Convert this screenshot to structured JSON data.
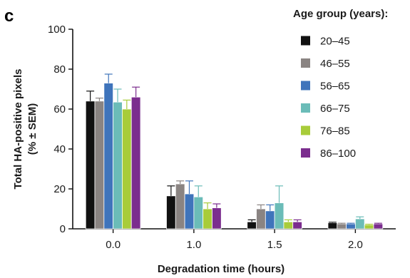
{
  "panel_label": "c",
  "chart_data": {
    "type": "bar",
    "xlabel": "Degradation time (hours)",
    "ylabel_lines": [
      "Total HA-positive pixels",
      "(% ± SEM)"
    ],
    "categories": [
      "0.0",
      "1.0",
      "1.5",
      "2.0"
    ],
    "ylim": [
      0,
      100
    ],
    "yticks": [
      "0",
      "20",
      "40",
      "60",
      "80",
      "100"
    ],
    "legend_title": "Age group (years):",
    "legend_position": "right",
    "grid": false,
    "series": [
      {
        "name": "20–45",
        "color": "#111111",
        "values": [
          64,
          16.5,
          3.5,
          3
        ],
        "err": [
          5,
          5,
          1,
          0.3
        ]
      },
      {
        "name": "46–55",
        "color": "#8a8482",
        "values": [
          64,
          22.5,
          10,
          2.5
        ],
        "err": [
          1.5,
          1.5,
          2,
          0.3
        ]
      },
      {
        "name": "56–65",
        "color": "#3f74bb",
        "values": [
          73,
          17.5,
          9,
          2.5
        ],
        "err": [
          4.5,
          6.5,
          3,
          0.3
        ]
      },
      {
        "name": "66–75",
        "color": "#6bbcb8",
        "values": [
          63.5,
          16,
          13,
          5
        ],
        "err": [
          6.5,
          5.5,
          8.5,
          1
        ]
      },
      {
        "name": "76–85",
        "color": "#a8cc3a",
        "values": [
          60,
          10,
          3.5,
          2
        ],
        "err": [
          4.5,
          3,
          1,
          0.3
        ]
      },
      {
        "name": "86–100",
        "color": "#7b2d8e",
        "values": [
          66,
          10.5,
          3.5,
          2.5
        ],
        "err": [
          5,
          2,
          1,
          0.3
        ]
      }
    ]
  }
}
